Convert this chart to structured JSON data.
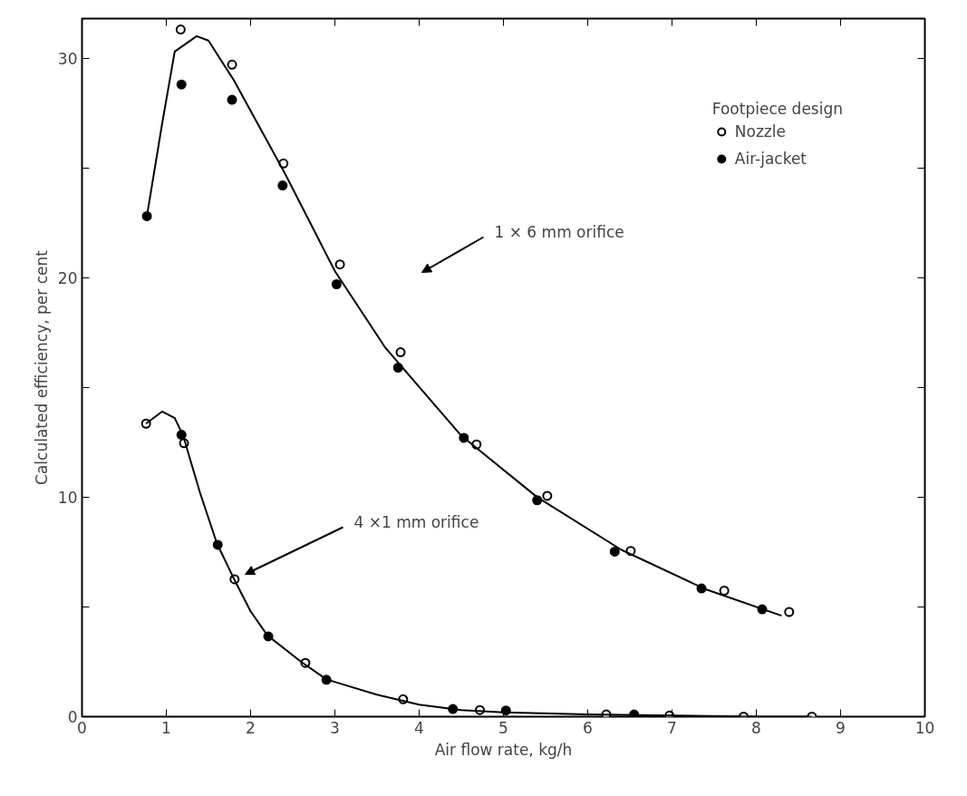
{
  "chart_data": {
    "type": "scatter",
    "xlabel": "Air flow rate, kg/h",
    "ylabel": "Calculated efficiency, per cent",
    "legend_title": "Footpiece design",
    "legend": "top right",
    "grid": false,
    "xlim": [
      0,
      10
    ],
    "ylim": [
      0,
      31.8
    ],
    "xticks": [
      0,
      1,
      2,
      3,
      4,
      5,
      6,
      7,
      8,
      9,
      10
    ],
    "yticks": [
      0,
      {
        "value": 5,
        "label": null
      },
      10,
      {
        "value": 15,
        "label": null
      },
      20,
      {
        "value": 25,
        "label": null
      },
      30
    ],
    "series": [
      {
        "name": "Nozzle",
        "color": "#000000",
        "marker": "circle",
        "x": [
          1.17,
          1.78,
          2.39,
          3.06,
          3.78,
          4.68,
          5.52,
          6.51,
          7.62,
          8.39,
          0.76,
          1.21,
          1.81,
          2.65,
          3.81,
          4.72,
          6.22,
          6.97,
          7.85,
          8.66
        ],
        "values": [
          31.3,
          29.7,
          25.2,
          20.6,
          16.6,
          12.4,
          10.06,
          7.55,
          5.74,
          4.77,
          13.35,
          12.46,
          6.26,
          2.45,
          0.79,
          0.3,
          0.1,
          0.05,
          0,
          0
        ]
      },
      {
        "name": "Air-jacket",
        "color": "#000000",
        "marker": "circle",
        "x": [
          0.77,
          1.18,
          1.78,
          2.38,
          3.02,
          3.75,
          4.53,
          5.4,
          6.32,
          7.35,
          8.07,
          1.18,
          1.61,
          2.21,
          2.9,
          4.4,
          5.03,
          6.55
        ],
        "values": [
          22.8,
          28.8,
          28.1,
          24.2,
          19.7,
          15.9,
          12.7,
          9.86,
          7.52,
          5.84,
          4.89,
          12.84,
          7.83,
          3.66,
          1.68,
          0.35,
          0.28,
          0.1
        ]
      },
      {
        "type": "line",
        "color": "#000000",
        "x": [
          0.77,
          0.95,
          1.1,
          1.36,
          1.5,
          1.8,
          2.4,
          3.0,
          3.6,
          4.5,
          5.4,
          6.4,
          7.4,
          8.3
        ],
        "values": [
          22.8,
          27,
          30.3,
          31,
          30.8,
          29,
          24.8,
          20.3,
          16.8,
          12.8,
          10.0,
          7.6,
          5.8,
          4.6
        ]
      },
      {
        "type": "line",
        "color": "#000000",
        "x": [
          0.76,
          0.95,
          1.1,
          1.2,
          1.4,
          1.6,
          1.8,
          2.0,
          2.2,
          2.6,
          2.9,
          3.5,
          4.0,
          4.5,
          5.0,
          6.0,
          7.0,
          8.0,
          8.66
        ],
        "values": [
          13.35,
          13.9,
          13.6,
          12.8,
          10.2,
          7.9,
          6.3,
          4.8,
          3.7,
          2.5,
          1.7,
          1.0,
          0.55,
          0.3,
          0.2,
          0.1,
          0.05,
          0,
          0
        ]
      }
    ],
    "annotations": [
      "1 × 6 mm  orifice",
      "4 ×1 mm  orifice"
    ]
  }
}
